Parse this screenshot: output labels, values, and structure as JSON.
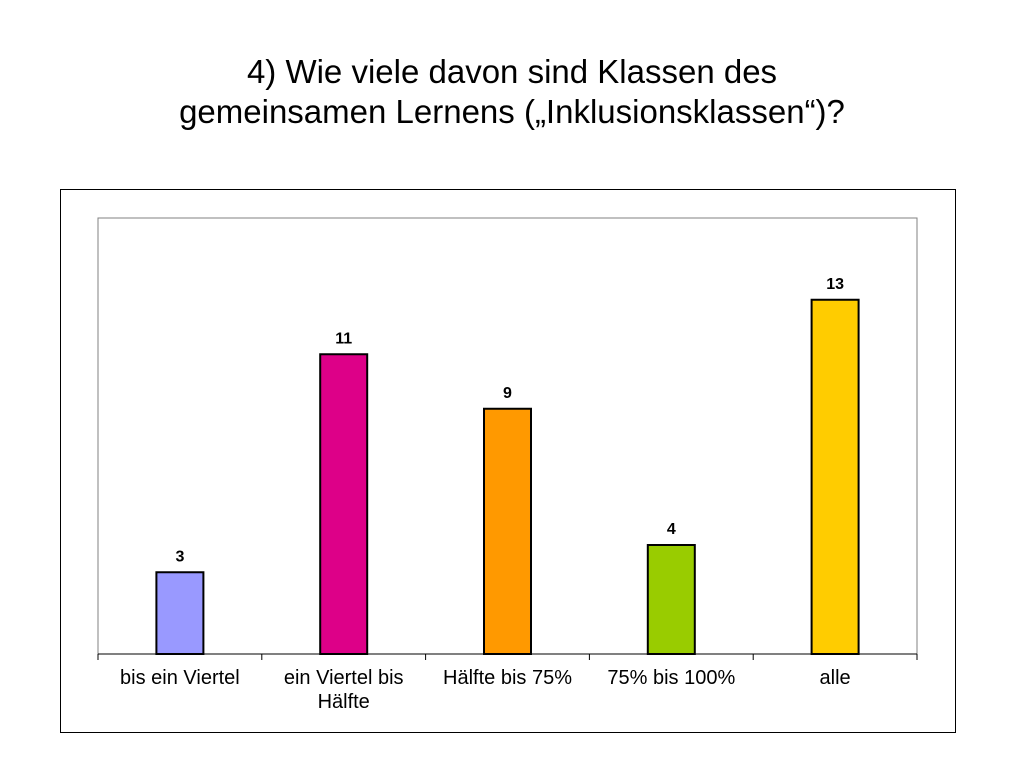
{
  "title": {
    "line1": "4) Wie viele davon sind Klassen des",
    "line2": "gemeinsamen Lernens („Inklusionsklassen“)?"
  },
  "chart_data": {
    "type": "bar",
    "title": "4) Wie viele davon sind Klassen des gemeinsamen Lernens („Inklusionsklassen“)?",
    "categories": [
      "bis ein Viertel",
      "ein Viertel bis Hälfte",
      "Hälfte bis 75%",
      "75% bis 100%",
      "alle"
    ],
    "category_lines": [
      [
        "bis ein Viertel"
      ],
      [
        "ein Viertel bis",
        "Hälfte"
      ],
      [
        "Hälfte bis 75%"
      ],
      [
        "75% bis 100%"
      ],
      [
        "alle"
      ]
    ],
    "values": [
      3,
      11,
      9,
      4,
      13
    ],
    "value_labels": [
      "3",
      "11",
      "9",
      "4",
      "13"
    ],
    "colors": [
      "#9999FF",
      "#DD0088",
      "#FF9900",
      "#99CC00",
      "#FFCC00"
    ],
    "ylim": [
      0,
      16
    ],
    "xlabel": "",
    "ylabel": "",
    "grid": false,
    "legend": "none"
  }
}
